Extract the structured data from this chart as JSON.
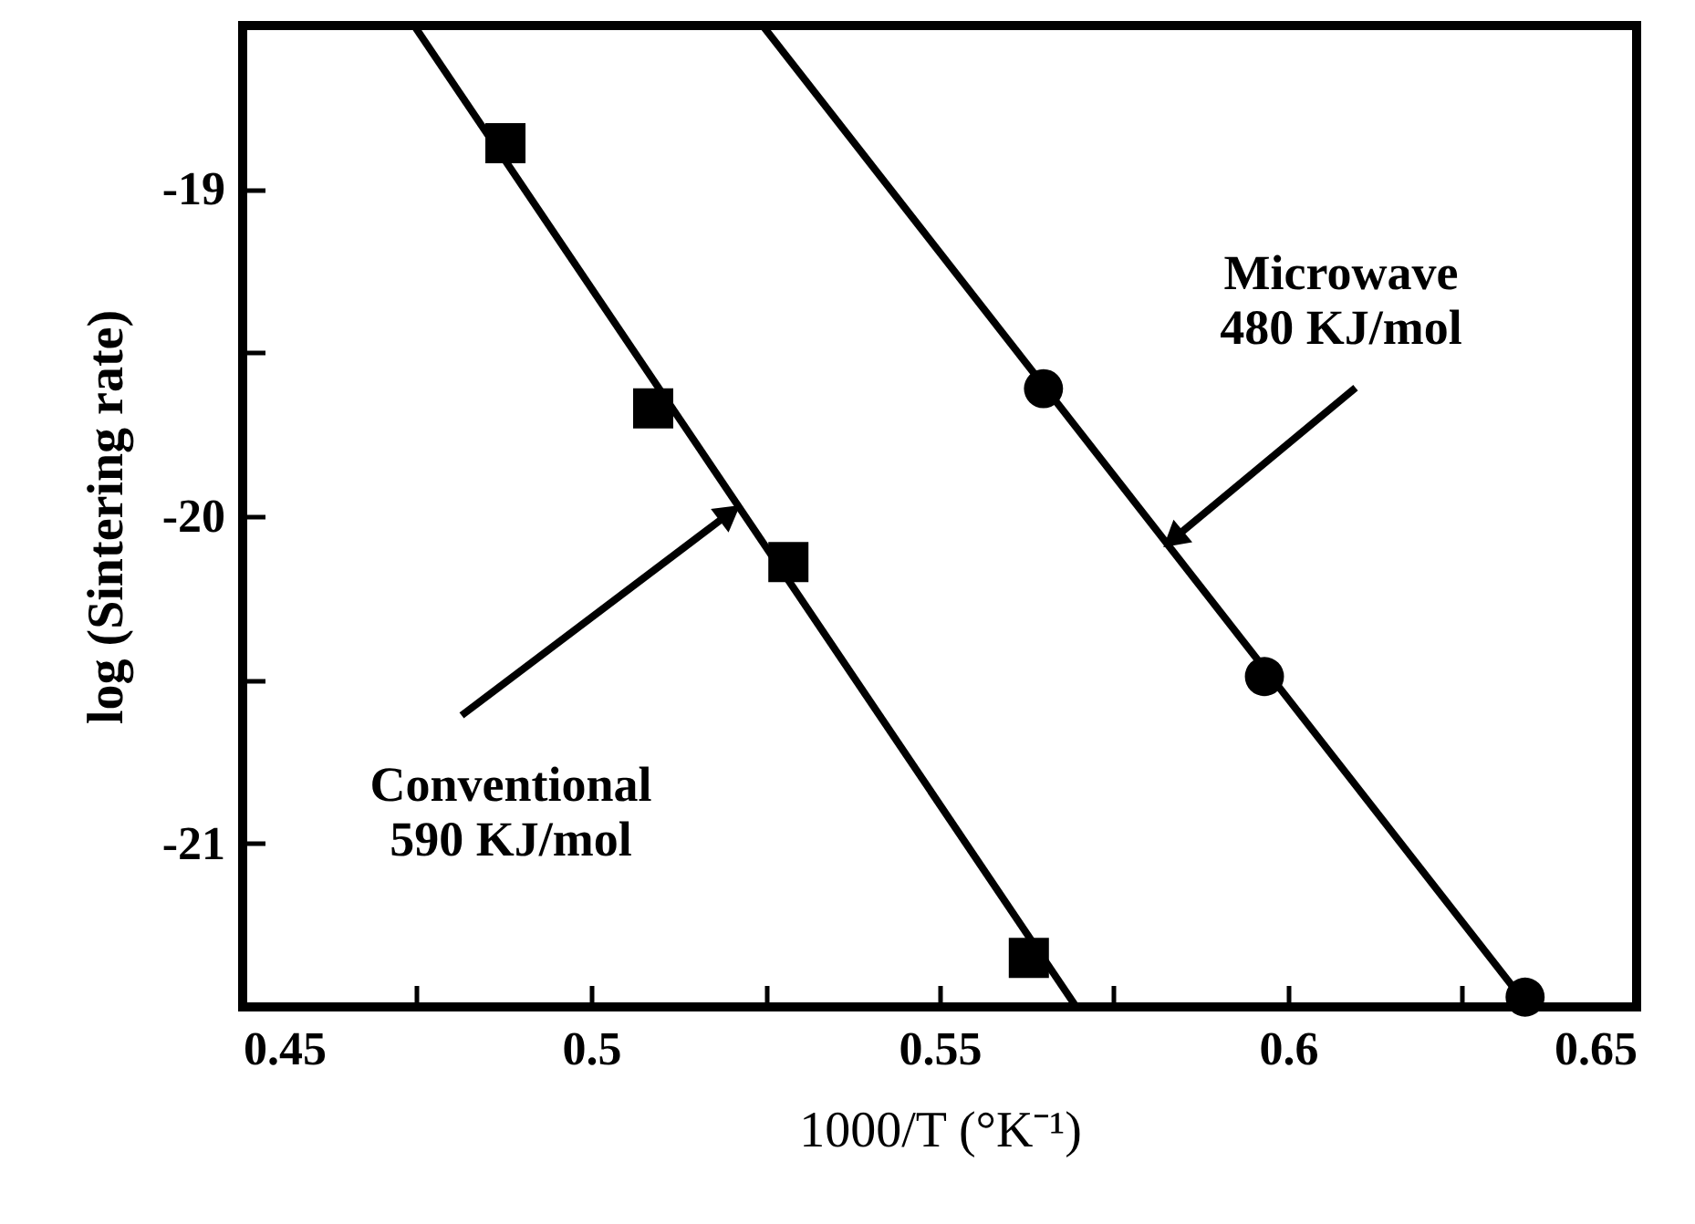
{
  "chart_data": {
    "type": "scatter",
    "xlabel": "1000/T (°K⁻¹)",
    "ylabel": "log (Sintering rate)",
    "xlim": [
      0.45,
      0.65
    ],
    "ylim": [
      -21.5,
      -18.5
    ],
    "xticks": [
      0.45,
      {
        "value": 0.475,
        "label": null
      },
      0.5,
      {
        "value": 0.525,
        "label": null
      },
      0.55,
      {
        "value": 0.575,
        "label": null
      },
      0.6,
      {
        "value": 0.625,
        "label": null
      },
      0.65
    ],
    "yticks": [
      {
        "value": -21.5,
        "label": null
      },
      -21,
      {
        "value": -20.5,
        "label": null
      },
      -20,
      {
        "value": -19.5,
        "label": null
      },
      -19,
      {
        "value": -18.5,
        "label": null
      }
    ],
    "grid": false,
    "series": [
      {
        "marker": "square",
        "color": "#000000",
        "x": [
          0.4877,
          0.5089,
          0.5283,
          0.5628
        ],
        "values": [
          -18.86,
          -19.67,
          -20.14,
          -21.35
        ]
      },
      {
        "marker": "circle",
        "color": "#000000",
        "x": [
          0.5649,
          0.5966,
          0.634
        ],
        "values": [
          -19.61,
          -20.49,
          -21.47
        ]
      },
      {
        "type": "line",
        "marker": "none",
        "line_style": "solid",
        "color": "#000000",
        "x": [
          0.4746,
          0.5696
        ],
        "values": [
          -18.5,
          -21.5
        ]
      },
      {
        "type": "line",
        "marker": "none",
        "line_style": "solid",
        "color": "#000000",
        "x": [
          0.5246,
          0.6345
        ],
        "values": [
          -18.5,
          -21.5
        ]
      }
    ],
    "annotations": [
      {
        "text": "Conventional\n590 KJ/mol",
        "x": 0.5199,
        "y": -19.99
      },
      {
        "text": "Microwave\n480 KJ/mol",
        "x": 0.5835,
        "y": -20.07
      }
    ]
  }
}
